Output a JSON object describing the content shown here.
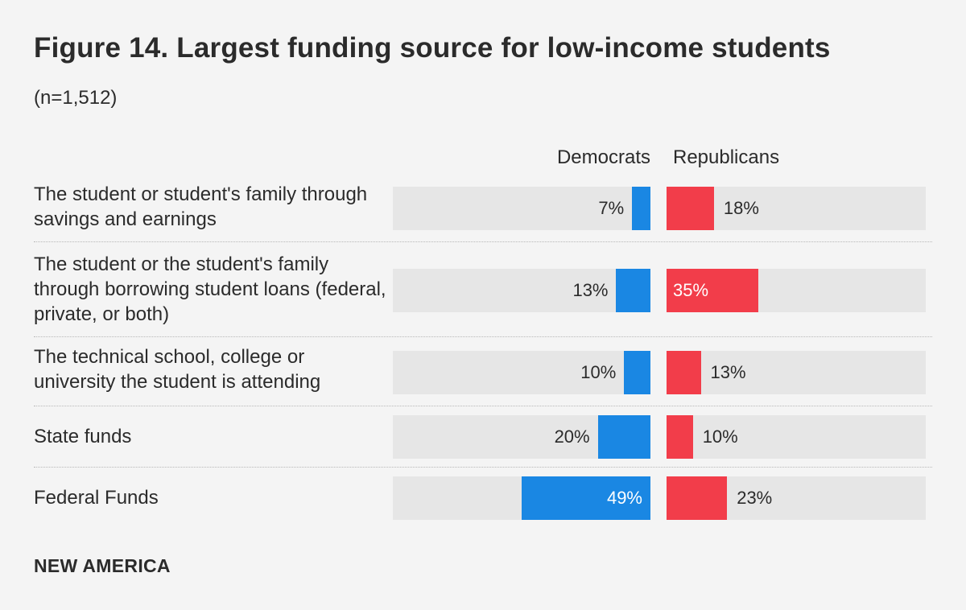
{
  "chart_data": {
    "type": "bar",
    "orientation": "horizontal-diverging",
    "title": "Figure 14. Largest funding source for low-income students",
    "subtitle": "(n=1,512)",
    "unit": "%",
    "categories": [
      "The student or student's family through savings and earnings",
      "The student or the student's family through borrowing student loans (federal, private, or both)",
      "The technical school, college or university the student is attending",
      "State funds",
      "Federal Funds"
    ],
    "series": [
      {
        "name": "Democrats",
        "color": "#1a87e3",
        "values": [
          7,
          13,
          10,
          20,
          49
        ]
      },
      {
        "name": "Republicans",
        "color": "#f23d4a",
        "values": [
          18,
          35,
          13,
          10,
          23
        ]
      }
    ],
    "xlim": [
      0,
      100
    ]
  },
  "footer": {
    "brand": "NEW AMERICA"
  }
}
